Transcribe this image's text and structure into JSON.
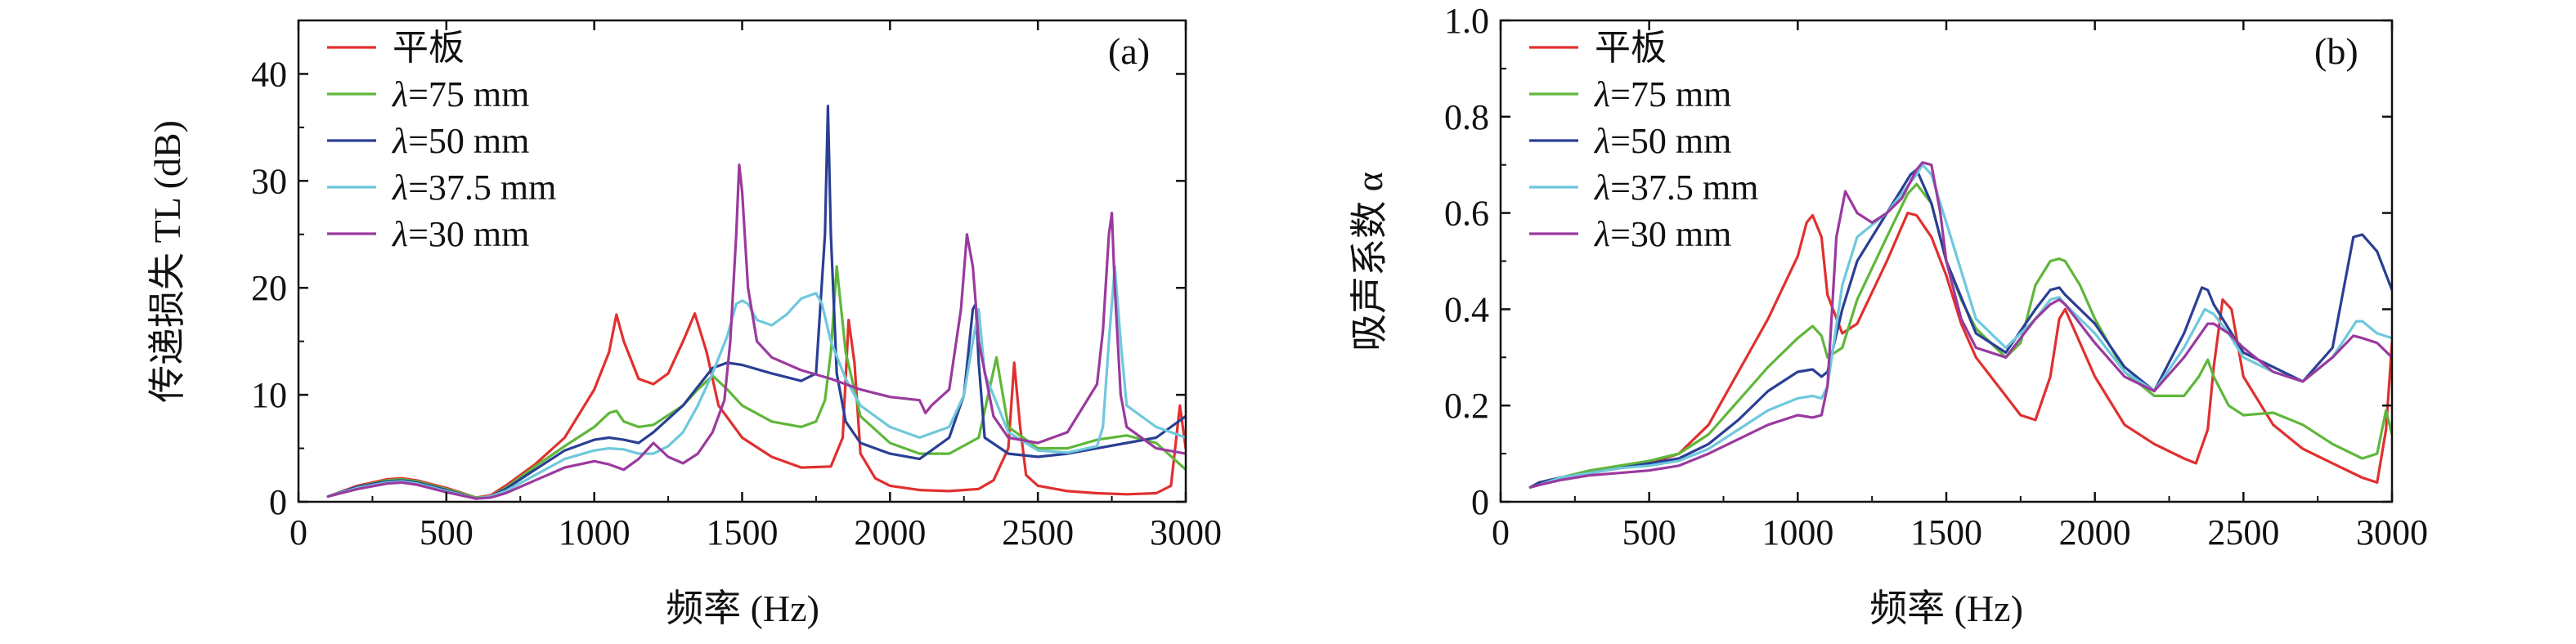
{
  "colors": {
    "flat": "#e0302f",
    "l75": "#5fb73a",
    "l50": "#2a3f94",
    "l375": "#6fc8dc",
    "l30": "#9a3a9e"
  },
  "chart_data": [
    {
      "type": "line",
      "panel_label": "(a)",
      "xlabel": "频率 (Hz)",
      "ylabel": "传递损失 TL (dB)",
      "xlim": [
        0,
        3000
      ],
      "ylim": [
        0,
        45
      ],
      "xticks": [
        "0",
        "500",
        "1000",
        "1500",
        "2000",
        "2500",
        "3000"
      ],
      "yticks": [
        "0",
        "10",
        "20",
        "30",
        "40"
      ],
      "legend_position": "top-left",
      "grid": false,
      "series": [
        {
          "name": "平板",
          "name_prefix": "",
          "name_value": "",
          "color_key": "flat",
          "x": [
            100,
            200,
            300,
            350,
            400,
            500,
            600,
            650,
            700,
            800,
            900,
            1000,
            1050,
            1075,
            1100,
            1150,
            1200,
            1250,
            1300,
            1340,
            1380,
            1420,
            1500,
            1600,
            1700,
            1800,
            1840,
            1860,
            1880,
            1900,
            1950,
            2000,
            2100,
            2200,
            2300,
            2350,
            2400,
            2420,
            2440,
            2460,
            2500,
            2600,
            2700,
            2800,
            2900,
            2950,
            2980,
            3000
          ],
          "y": [
            0.5,
            1.5,
            2.1,
            2.2,
            2.0,
            1.3,
            0.4,
            0.6,
            1.5,
            3.5,
            6,
            10.5,
            14,
            17.5,
            15,
            11.5,
            11,
            12,
            15,
            17.6,
            14,
            9,
            6,
            4.2,
            3.2,
            3.3,
            6,
            17,
            13,
            4.5,
            2.2,
            1.5,
            1.1,
            1.0,
            1.2,
            2,
            5,
            13,
            7,
            2.5,
            1.5,
            1.0,
            0.8,
            0.7,
            0.8,
            1.5,
            9,
            5
          ]
        },
        {
          "name": "λ=75 mm",
          "name_prefix": "λ",
          "name_value": "=75 mm",
          "color_key": "l75",
          "x": [
            100,
            200,
            300,
            350,
            400,
            500,
            600,
            650,
            700,
            800,
            900,
            1000,
            1050,
            1075,
            1100,
            1150,
            1200,
            1300,
            1350,
            1400,
            1450,
            1500,
            1600,
            1700,
            1750,
            1780,
            1800,
            1820,
            1850,
            1900,
            2000,
            2100,
            2200,
            2300,
            2340,
            2360,
            2400,
            2500,
            2600,
            2700,
            2800,
            2900,
            3000
          ],
          "y": [
            0.5,
            1.4,
            2.0,
            2.1,
            1.9,
            1.2,
            0.4,
            0.5,
            1.3,
            3.3,
            5.2,
            7,
            8.3,
            8.5,
            7.5,
            7,
            7.2,
            9,
            10.5,
            11.8,
            10.5,
            9,
            7.5,
            7,
            7.5,
            9.5,
            14,
            22,
            14,
            8,
            5.5,
            4.5,
            4.5,
            6,
            11,
            13.5,
            7,
            5,
            5,
            5.8,
            6.2,
            5.5,
            3
          ]
        },
        {
          "name": "λ=50 mm",
          "name_prefix": "λ",
          "name_value": "=50 mm",
          "color_key": "l50",
          "x": [
            100,
            200,
            300,
            350,
            400,
            500,
            600,
            650,
            700,
            800,
            900,
            1000,
            1050,
            1100,
            1150,
            1200,
            1300,
            1400,
            1450,
            1500,
            1600,
            1700,
            1750,
            1780,
            1790,
            1800,
            1820,
            1850,
            1900,
            2000,
            2100,
            2200,
            2250,
            2280,
            2290,
            2300,
            2320,
            2400,
            2500,
            2600,
            2700,
            2800,
            2900,
            3000
          ],
          "y": [
            0.5,
            1.4,
            1.9,
            2.0,
            1.8,
            1.1,
            0.3,
            0.5,
            1.2,
            3,
            4.8,
            5.8,
            6,
            5.8,
            5.5,
            6.5,
            9,
            12.5,
            13,
            12.8,
            12,
            11.3,
            12,
            25,
            37,
            25,
            12,
            7.5,
            5.5,
            4.5,
            4,
            6,
            10,
            18,
            18.5,
            13,
            6,
            4.5,
            4.2,
            4.5,
            5,
            5.5,
            6,
            8
          ]
        },
        {
          "name": "λ=37.5 mm",
          "name_prefix": "λ",
          "name_value": "=37.5 mm",
          "color_key": "l375",
          "x": [
            100,
            200,
            300,
            350,
            400,
            500,
            600,
            650,
            700,
            800,
            900,
            1000,
            1050,
            1100,
            1150,
            1200,
            1250,
            1300,
            1350,
            1400,
            1450,
            1480,
            1500,
            1520,
            1550,
            1600,
            1650,
            1700,
            1750,
            1770,
            1800,
            1850,
            1900,
            2000,
            2100,
            2200,
            2250,
            2280,
            2300,
            2320,
            2400,
            2500,
            2600,
            2700,
            2720,
            2740,
            2760,
            2780,
            2800,
            2900,
            3000
          ],
          "y": [
            0.5,
            1.3,
            1.8,
            1.9,
            1.7,
            1.0,
            0.3,
            0.5,
            1.0,
            2.5,
            4,
            4.8,
            5,
            4.9,
            4.5,
            4.5,
            5.2,
            6.5,
            9,
            12,
            15.5,
            18.5,
            18.8,
            18.5,
            17,
            16.5,
            17.5,
            19,
            19.5,
            18.5,
            15,
            11.5,
            9,
            7,
            6,
            7,
            10,
            15,
            18,
            12,
            6.5,
            4.8,
            4.6,
            5.2,
            7,
            15,
            22,
            15,
            9,
            7,
            6
          ]
        },
        {
          "name": "λ=30 mm",
          "name_prefix": "λ",
          "name_value": "=30 mm",
          "color_key": "l30",
          "x": [
            100,
            200,
            300,
            350,
            400,
            500,
            600,
            650,
            700,
            800,
            900,
            1000,
            1050,
            1100,
            1150,
            1200,
            1250,
            1300,
            1350,
            1400,
            1440,
            1460,
            1480,
            1490,
            1500,
            1520,
            1550,
            1600,
            1700,
            1800,
            1900,
            2000,
            2100,
            2120,
            2140,
            2200,
            2240,
            2260,
            2280,
            2300,
            2350,
            2400,
            2500,
            2600,
            2700,
            2720,
            2740,
            2750,
            2760,
            2780,
            2800,
            2900,
            3000
          ],
          "y": [
            0.5,
            1.2,
            1.7,
            1.8,
            1.6,
            0.9,
            0.3,
            0.4,
            0.8,
            2,
            3.2,
            3.8,
            3.5,
            3,
            4,
            5.5,
            4.2,
            3.6,
            4.5,
            6.5,
            9.5,
            15,
            25,
            31.5,
            29,
            20,
            15,
            13.5,
            12.3,
            11.5,
            10.5,
            9.8,
            9.5,
            8.3,
            9,
            10.5,
            18,
            25,
            22,
            15,
            8,
            6,
            5.5,
            6.5,
            11,
            16,
            25,
            27,
            20,
            10,
            7,
            5,
            4.5
          ]
        }
      ]
    },
    {
      "type": "line",
      "panel_label": "(b)",
      "xlabel": "频率 (Hz)",
      "ylabel": "吸声系数 α",
      "xlim": [
        0,
        3000
      ],
      "ylim": [
        0,
        1.0
      ],
      "xticks": [
        "0",
        "500",
        "1000",
        "1500",
        "2000",
        "2500",
        "3000"
      ],
      "yticks": [
        "0",
        "0.2",
        "0.4",
        "0.6",
        "0.8",
        "1.0"
      ],
      "legend_position": "top-left",
      "grid": false,
      "series": [
        {
          "name": "平板",
          "name_prefix": "",
          "name_value": "",
          "color_key": "flat",
          "x": [
            100,
            130,
            200,
            300,
            400,
            500,
            600,
            700,
            800,
            900,
            1000,
            1030,
            1050,
            1080,
            1100,
            1150,
            1200,
            1300,
            1370,
            1400,
            1450,
            1500,
            1550,
            1600,
            1700,
            1750,
            1800,
            1850,
            1880,
            1900,
            1950,
            2000,
            2100,
            2200,
            2300,
            2340,
            2380,
            2400,
            2430,
            2460,
            2500,
            2600,
            2700,
            2800,
            2900,
            2950,
            2980,
            3000
          ],
          "y": [
            0.03,
            0.04,
            0.05,
            0.06,
            0.07,
            0.08,
            0.1,
            0.16,
            0.27,
            0.38,
            0.51,
            0.58,
            0.595,
            0.55,
            0.43,
            0.35,
            0.37,
            0.5,
            0.6,
            0.595,
            0.55,
            0.47,
            0.37,
            0.3,
            0.22,
            0.18,
            0.17,
            0.26,
            0.38,
            0.4,
            0.33,
            0.26,
            0.16,
            0.12,
            0.09,
            0.08,
            0.15,
            0.28,
            0.42,
            0.4,
            0.26,
            0.16,
            0.11,
            0.08,
            0.05,
            0.04,
            0.15,
            0.33
          ]
        },
        {
          "name": "λ=75 mm",
          "name_prefix": "λ",
          "name_value": "=75 mm",
          "color_key": "l75",
          "x": [
            100,
            130,
            200,
            300,
            400,
            500,
            600,
            700,
            800,
            900,
            1000,
            1050,
            1080,
            1100,
            1150,
            1200,
            1300,
            1370,
            1400,
            1450,
            1500,
            1550,
            1600,
            1700,
            1750,
            1800,
            1850,
            1880,
            1900,
            1950,
            2000,
            2100,
            2200,
            2300,
            2350,
            2380,
            2400,
            2450,
            2500,
            2600,
            2700,
            2800,
            2900,
            2950,
            2980,
            3000
          ],
          "y": [
            0.03,
            0.04,
            0.05,
            0.065,
            0.075,
            0.085,
            0.1,
            0.14,
            0.21,
            0.28,
            0.34,
            0.365,
            0.345,
            0.3,
            0.32,
            0.42,
            0.55,
            0.64,
            0.66,
            0.62,
            0.5,
            0.42,
            0.36,
            0.3,
            0.33,
            0.45,
            0.5,
            0.505,
            0.5,
            0.45,
            0.38,
            0.27,
            0.22,
            0.22,
            0.26,
            0.295,
            0.26,
            0.2,
            0.18,
            0.185,
            0.16,
            0.12,
            0.09,
            0.1,
            0.19,
            0.14
          ]
        },
        {
          "name": "λ=50 mm",
          "name_prefix": "λ",
          "name_value": "=50 mm",
          "color_key": "l50",
          "x": [
            100,
            130,
            200,
            300,
            400,
            500,
            600,
            700,
            800,
            900,
            1000,
            1050,
            1080,
            1100,
            1150,
            1200,
            1300,
            1380,
            1400,
            1450,
            1500,
            1600,
            1700,
            1800,
            1850,
            1880,
            1900,
            2000,
            2100,
            2200,
            2300,
            2360,
            2380,
            2400,
            2450,
            2500,
            2600,
            2700,
            2800,
            2870,
            2900,
            2950,
            3000
          ],
          "y": [
            0.03,
            0.04,
            0.05,
            0.06,
            0.07,
            0.08,
            0.09,
            0.12,
            0.17,
            0.23,
            0.27,
            0.275,
            0.26,
            0.27,
            0.4,
            0.5,
            0.6,
            0.68,
            0.69,
            0.62,
            0.5,
            0.35,
            0.31,
            0.4,
            0.44,
            0.445,
            0.43,
            0.37,
            0.28,
            0.23,
            0.35,
            0.445,
            0.44,
            0.41,
            0.36,
            0.31,
            0.28,
            0.25,
            0.32,
            0.55,
            0.555,
            0.52,
            0.44
          ]
        },
        {
          "name": "λ=37.5 mm",
          "name_prefix": "λ",
          "name_value": "=37.5 mm",
          "color_key": "l375",
          "x": [
            100,
            130,
            200,
            300,
            400,
            500,
            600,
            700,
            800,
            900,
            1000,
            1050,
            1080,
            1100,
            1150,
            1200,
            1300,
            1400,
            1420,
            1450,
            1500,
            1600,
            1700,
            1800,
            1850,
            1880,
            1900,
            2000,
            2100,
            2200,
            2300,
            2370,
            2400,
            2450,
            2500,
            2600,
            2700,
            2800,
            2880,
            2900,
            2950,
            3000
          ],
          "y": [
            0.03,
            0.035,
            0.05,
            0.06,
            0.07,
            0.075,
            0.085,
            0.11,
            0.15,
            0.19,
            0.215,
            0.22,
            0.215,
            0.24,
            0.45,
            0.55,
            0.6,
            0.68,
            0.7,
            0.68,
            0.58,
            0.38,
            0.32,
            0.38,
            0.42,
            0.425,
            0.41,
            0.35,
            0.27,
            0.23,
            0.32,
            0.4,
            0.39,
            0.35,
            0.3,
            0.27,
            0.25,
            0.3,
            0.375,
            0.375,
            0.35,
            0.34
          ]
        },
        {
          "name": "λ=30 mm",
          "name_prefix": "λ",
          "name_value": "=30 mm",
          "color_key": "l30",
          "x": [
            100,
            130,
            200,
            300,
            400,
            500,
            600,
            700,
            800,
            900,
            1000,
            1050,
            1080,
            1100,
            1130,
            1160,
            1200,
            1250,
            1300,
            1350,
            1400,
            1420,
            1450,
            1480,
            1500,
            1550,
            1600,
            1700,
            1800,
            1850,
            1880,
            1900,
            2000,
            2100,
            2200,
            2300,
            2380,
            2400,
            2450,
            2500,
            2600,
            2700,
            2800,
            2870,
            2900,
            2950,
            3000
          ],
          "y": [
            0.03,
            0.035,
            0.045,
            0.055,
            0.06,
            0.065,
            0.075,
            0.1,
            0.13,
            0.16,
            0.18,
            0.175,
            0.18,
            0.24,
            0.55,
            0.645,
            0.6,
            0.58,
            0.6,
            0.63,
            0.69,
            0.705,
            0.7,
            0.6,
            0.5,
            0.38,
            0.32,
            0.3,
            0.38,
            0.41,
            0.42,
            0.41,
            0.33,
            0.26,
            0.23,
            0.3,
            0.37,
            0.37,
            0.35,
            0.32,
            0.27,
            0.25,
            0.3,
            0.345,
            0.34,
            0.33,
            0.3
          ]
        }
      ]
    }
  ]
}
